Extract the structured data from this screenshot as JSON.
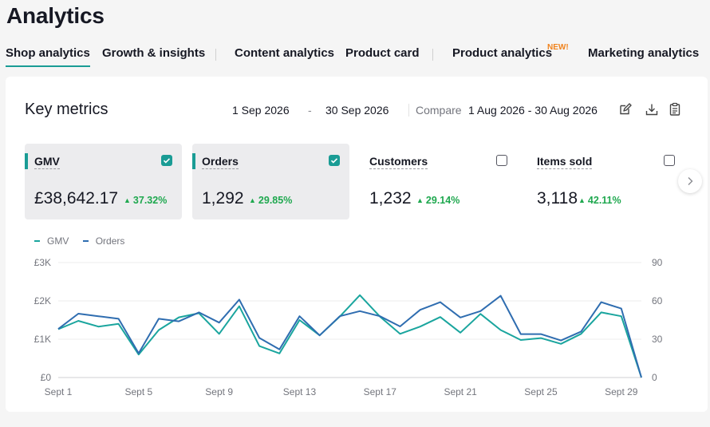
{
  "page": {
    "title": "Analytics"
  },
  "tabs": [
    {
      "label": "Shop analytics",
      "active": true
    },
    {
      "label": "Growth & insights"
    },
    {
      "label": "Content analytics"
    },
    {
      "label": "Product card"
    },
    {
      "label": "Product analytics",
      "badge": "NEW!"
    },
    {
      "label": "Marketing analytics"
    }
  ],
  "key_metrics": {
    "title": "Key metrics",
    "date_start": "1 Sep 2026",
    "date_separator": "-",
    "date_end": "30 Sep 2026",
    "compare_label": "Compare",
    "compare_range": "1 Aug 2026 - 30 Aug 2026",
    "icons": [
      "edit-icon",
      "download-icon",
      "clipboard-icon"
    ]
  },
  "metrics": [
    {
      "label": "GMV",
      "value": "£38,642.17",
      "change": "37.32%",
      "selected": true
    },
    {
      "label": "Orders",
      "value": "1,292",
      "change": "29.85%",
      "selected": true
    },
    {
      "label": "Customers",
      "value": "1,232",
      "change": "29.14%",
      "selected": false
    },
    {
      "label": "Items sold",
      "value": "3,118",
      "change": "42.11%",
      "selected": false
    }
  ],
  "colors": {
    "accent": "#1a9c95",
    "gmv": "#1aa59e",
    "orders": "#2f6db0",
    "positive": "#1fa84f",
    "new_badge": "#f0831d"
  },
  "chart_data": {
    "type": "line",
    "legend": [
      "GMV",
      "Orders"
    ],
    "legend_position": "top-left",
    "x": [
      1,
      2,
      3,
      4,
      5,
      6,
      7,
      8,
      9,
      10,
      11,
      12,
      13,
      14,
      15,
      16,
      17,
      18,
      19,
      20,
      21,
      22,
      23,
      24,
      25,
      26,
      27,
      28,
      29,
      30
    ],
    "x_tick_labels": [
      "Sept 1",
      "Sept 5",
      "Sept 9",
      "Sept 13",
      "Sept 17",
      "Sept 21",
      "Sept 25",
      "Sept 29"
    ],
    "y_left": {
      "ticks": [
        "£0",
        "£1K",
        "£2K",
        "£3K"
      ],
      "range": [
        0,
        3000
      ]
    },
    "y_right": {
      "ticks": [
        "0",
        "30",
        "60",
        "90"
      ],
      "range": [
        0,
        90
      ]
    },
    "grid": true,
    "series": [
      {
        "name": "GMV",
        "axis": "left",
        "values": [
          1260,
          1480,
          1330,
          1400,
          600,
          1240,
          1570,
          1680,
          1140,
          1860,
          820,
          630,
          1500,
          1100,
          1590,
          2150,
          1590,
          1140,
          1330,
          1580,
          1170,
          1660,
          1240,
          980,
          1030,
          880,
          1140,
          1700,
          1600,
          0
        ]
      },
      {
        "name": "Orders",
        "axis": "right",
        "values": [
          38,
          50,
          48,
          46,
          19,
          46,
          44,
          51,
          43,
          61,
          31,
          22,
          48,
          33,
          48,
          52,
          48,
          40,
          53,
          59,
          47,
          52,
          64,
          34,
          34,
          29,
          36,
          59,
          54,
          0
        ]
      }
    ]
  }
}
